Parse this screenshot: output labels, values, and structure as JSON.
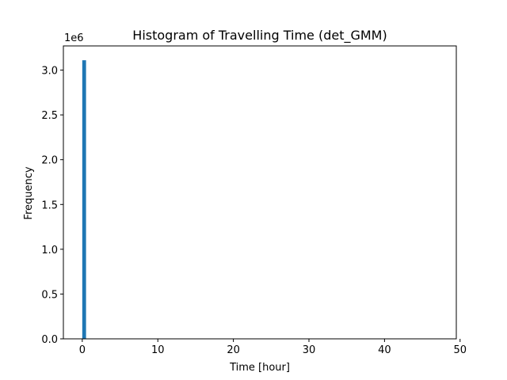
{
  "chart_data": {
    "type": "bar",
    "title": "Histogram of Travelling Time (det_GMM)",
    "xlabel": "Time [hour]",
    "ylabel": "Frequency",
    "y_offset_label": "1e6",
    "xlim": [
      -2.5,
      49.5
    ],
    "ylim": [
      0,
      3270000
    ],
    "xticks": [
      0,
      10,
      20,
      30,
      40,
      50
    ],
    "xtick_labels": [
      "0",
      "10",
      "20",
      "30",
      "40",
      "50"
    ],
    "yticks": [
      0,
      500000,
      1000000,
      1500000,
      2000000,
      2500000,
      3000000
    ],
    "ytick_labels": [
      "0.0",
      "0.5",
      "1.0",
      "1.5",
      "2.0",
      "2.5",
      "3.0"
    ],
    "bins": [
      {
        "x0": 0.0,
        "x1": 0.5,
        "count": 3110000
      }
    ],
    "bar_color": "#1f77b4",
    "grid": false,
    "legend": "none"
  }
}
